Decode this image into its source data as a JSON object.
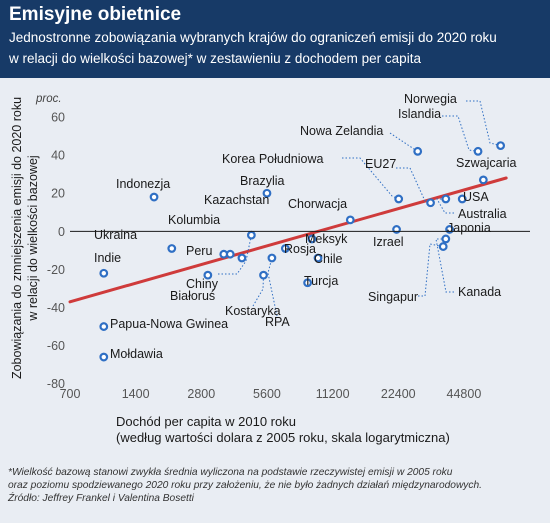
{
  "header": {
    "title": "Emisyjne obietnice",
    "subtitle_line1": "Jednostronne zobowiązania wybranych krajów do ograniczeń emisji do 2020 roku",
    "subtitle_line2": "w relacji do wielkości bazowej* w zestawieniu z dochodem per capita"
  },
  "colors": {
    "header_bg": "#173a67",
    "panel_bg": "#e9edf3",
    "point": "#2f6fc4",
    "trend_line": "#cf3b3b",
    "leader_line": "#2f6fc4"
  },
  "chart_data": {
    "type": "scatter",
    "xlabel_line1": "Dochód per capita w 2010 roku",
    "xlabel_line2": "(według wartości dolara z 2005 roku, skala logarytmiczna)",
    "ylabel_line1": "Zobowiązania do zmniejszenia emisji do 2020 roku",
    "ylabel_line2": "w relacji do wielkości bazowej",
    "yunit": "proc.",
    "x_scale": "log",
    "xlim": [
      700,
      90000
    ],
    "ylim": [
      -77,
      70
    ],
    "x_ticks": [
      700,
      1400,
      2800,
      5600,
      11200,
      22400,
      44800
    ],
    "x_tick_labels": [
      "700",
      "1400",
      "2800",
      "5600",
      "11200",
      "22400",
      "44800"
    ],
    "y_ticks": [
      -80,
      -60,
      -40,
      -20,
      0,
      20,
      40,
      60
    ],
    "y_tick_labels": [
      "-80",
      "-60",
      "-40",
      "-20",
      "0",
      "20",
      "40",
      "60"
    ],
    "grid": false,
    "points": [
      {
        "label": "Indie",
        "x": 1000,
        "y": -22
      },
      {
        "label": "Indonezja",
        "x": 1700,
        "y": 18
      },
      {
        "label": "Ukraina",
        "x": 2050,
        "y": -9
      },
      {
        "label": "Papua-Nowa Gwinea",
        "x": 1000,
        "y": -50
      },
      {
        "label": "Mołdawia",
        "x": 1000,
        "y": -66
      },
      {
        "label": "Chiny",
        "x": 3000,
        "y": -23
      },
      {
        "label": "Peru",
        "x": 3550,
        "y": -12
      },
      {
        "label": "Kolumbia",
        "x": 3800,
        "y": -12
      },
      {
        "label": "Kazachstan",
        "x": 4300,
        "y": -14
      },
      {
        "label": "Białoruś",
        "x": 4750,
        "y": -2
      },
      {
        "label": "Kostaryka",
        "x": 5400,
        "y": -23
      },
      {
        "label": "Brazylia",
        "x": 5600,
        "y": 20
      },
      {
        "label": "RPA",
        "x": 5900,
        "y": -14
      },
      {
        "label": "Rosja",
        "x": 6800,
        "y": -9
      },
      {
        "label": "Turcja",
        "x": 8600,
        "y": -27
      },
      {
        "label": "Meksyk",
        "x": 9000,
        "y": -4
      },
      {
        "label": "Chile",
        "x": 9600,
        "y": -14
      },
      {
        "label": "Chorwacja",
        "x": 13500,
        "y": 6
      },
      {
        "label": "Korea Południowa",
        "x": 22500,
        "y": 17
      },
      {
        "label": "Izrael",
        "x": 22000,
        "y": 1
      },
      {
        "label": "Nowa Zelandia",
        "x": 27500,
        "y": 42
      },
      {
        "label": "EU27",
        "x": 31500,
        "y": 15
      },
      {
        "label": "Singapur",
        "x": 36000,
        "y": -8
      },
      {
        "label": "Japonia",
        "x": 38500,
        "y": 1
      },
      {
        "label": "Kanada",
        "x": 37000,
        "y": -4
      },
      {
        "label": "Australia",
        "x": 37000,
        "y": 17
      },
      {
        "label": "USA",
        "x": 44000,
        "y": 17
      },
      {
        "label": "Islandia",
        "x": 52000,
        "y": 42
      },
      {
        "label": "Szwajcaria",
        "x": 55000,
        "y": 27
      },
      {
        "label": "Norwegia",
        "x": 66000,
        "y": 45
      }
    ],
    "trend_line": {
      "x": [
        700,
        70000
      ],
      "y": [
        -37,
        28
      ]
    }
  },
  "footnote": {
    "line1": "*Wielkość bazową stanowi zwykła średnia wyliczona na podstawie rzeczywistej emisji w 2005 roku",
    "line2": "oraz poziomu spodziewanego 2020 roku przy założeniu, że nie było żadnych działań międzynarodowych.",
    "line3": "Źródło: Jeffrey Frankel i Valentina Bosetti"
  }
}
